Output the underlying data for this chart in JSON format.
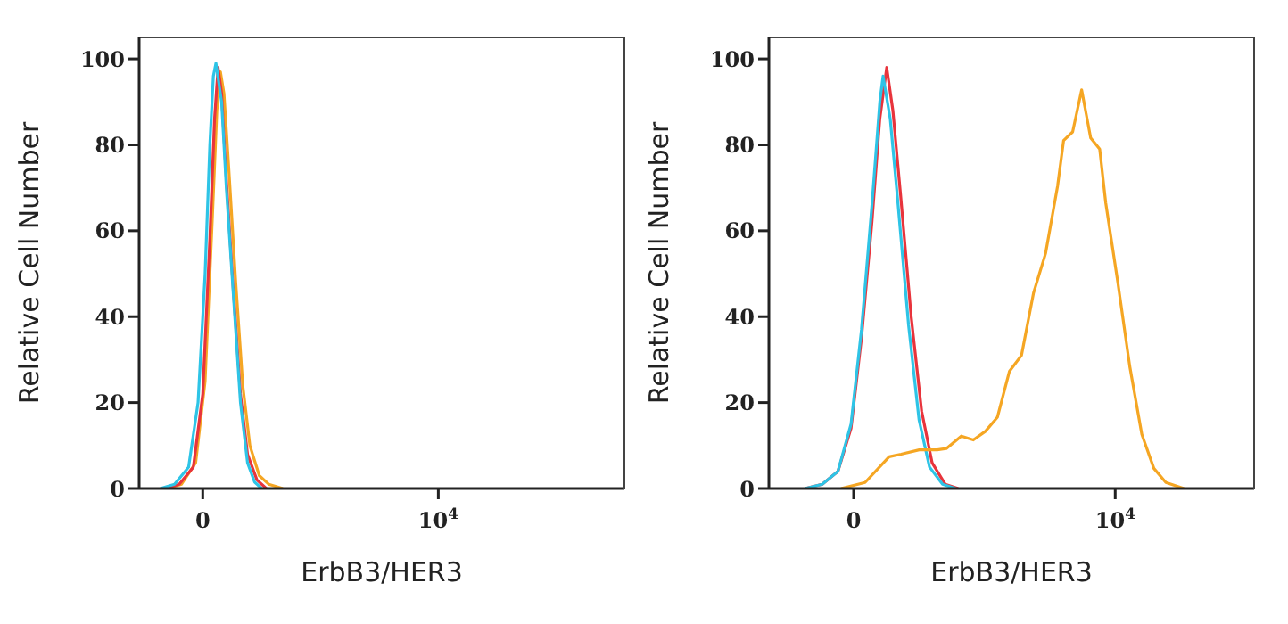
{
  "chart_data": [
    {
      "type": "line",
      "ylabel": "Relative Cell Number",
      "xlabel": "ErbB3/HER3",
      "xlim": [
        -2700,
        17900
      ],
      "xticks": [
        0,
        {
          "value": 10000,
          "label": "10$^{4}$"
        }
      ],
      "ylim": [
        0,
        105
      ],
      "yticks": [
        0,
        20,
        40,
        60,
        80,
        100
      ],
      "marker": "none",
      "series": [
        {
          "color": "#f5a623",
          "x": [
            -1500,
            -900,
            -300,
            100,
            400,
            600,
            750,
            900,
            1100,
            1400,
            1700,
            2000,
            2400,
            2800,
            3400
          ],
          "values": [
            0,
            1,
            6,
            25,
            62,
            88,
            97,
            92,
            75,
            48,
            24,
            10,
            3,
            1,
            0
          ]
        },
        {
          "color": "#e8343c",
          "x": [
            -1600,
            -1000,
            -400,
            0,
            300,
            500,
            650,
            800,
            1000,
            1300,
            1600,
            1900,
            2300,
            2700
          ],
          "values": [
            0,
            1,
            5,
            22,
            58,
            86,
            98,
            92,
            72,
            46,
            22,
            8,
            2,
            0
          ]
        },
        {
          "color": "#2ec4e6",
          "x": [
            -1800,
            -1200,
            -600,
            -200,
            100,
            300,
            450,
            560,
            800,
            1000,
            1300,
            1600,
            1900,
            2200,
            2500
          ],
          "values": [
            0,
            1,
            5,
            20,
            50,
            80,
            96,
            99,
            90,
            70,
            45,
            20,
            6,
            1.5,
            0
          ]
        }
      ]
    },
    {
      "type": "line",
      "ylabel": "Relative Cell Number",
      "xlabel": "ErbB3/HER3",
      "xlim": [
        -3240,
        15310
      ],
      "xticks": [
        0,
        {
          "value": 10000,
          "label": "10$^{4}$"
        }
      ],
      "ylim": [
        0,
        105
      ],
      "yticks": [
        0,
        20,
        40,
        60,
        80,
        100
      ],
      "marker": "none",
      "series": [
        {
          "color": "#e8343c",
          "x": [
            -1860,
            -1200,
            -600,
            -100,
            300,
            700,
            1000,
            1265,
            1500,
            1800,
            2200,
            2600,
            3000,
            3500,
            4000
          ],
          "values": [
            0,
            1,
            4,
            14,
            35,
            62,
            86,
            98,
            88,
            68,
            40,
            18,
            6,
            1,
            0
          ]
        },
        {
          "color": "#2ec4e6",
          "x": [
            -1860,
            -1200,
            -600,
            -100,
            300,
            700,
            1000,
            1125,
            1400,
            1700,
            2100,
            2500,
            2900,
            3400,
            3900
          ],
          "values": [
            0,
            1,
            4,
            15,
            37,
            66,
            90,
            96,
            86,
            66,
            38,
            16,
            5,
            1,
            0
          ]
        },
        {
          "color": "#f5a623",
          "x": [
            -480,
            437,
            1357,
            1817,
            2507,
            3197,
            3542,
            4117,
            4577,
            5037,
            5497,
            5957,
            6417,
            6877,
            7337,
            7797,
            8027,
            8372,
            8717,
            9062,
            9407,
            9637,
            10097,
            10557,
            11017,
            11477,
            11937,
            12627
          ],
          "values": [
            0,
            1.4,
            7.4,
            8,
            9,
            9,
            9.3,
            12.2,
            11.3,
            13.3,
            16.6,
            27.3,
            31,
            45.5,
            54.7,
            70.4,
            81,
            83,
            92.8,
            81.6,
            79,
            66.5,
            48.1,
            28.4,
            12.6,
            4.7,
            1.4,
            0
          ]
        }
      ]
    }
  ]
}
